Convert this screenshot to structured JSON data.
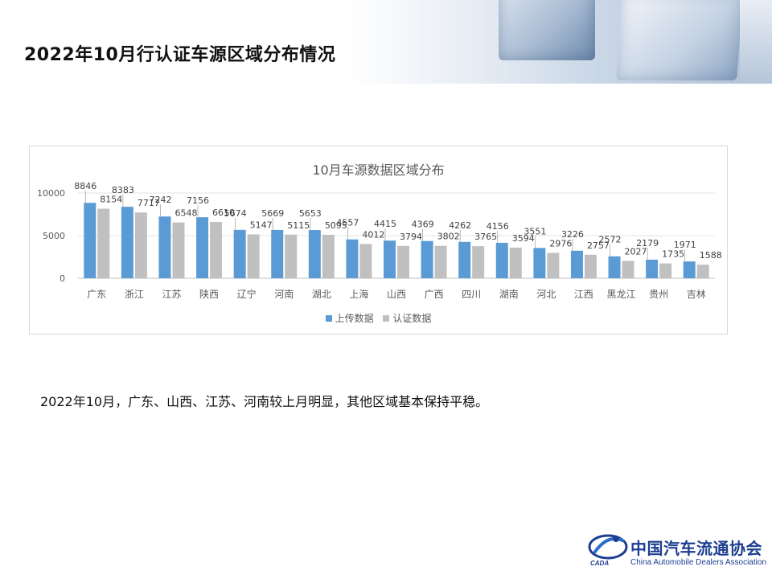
{
  "header": {
    "title": "2022年10月行认证车源区域分布情况"
  },
  "chart_data": {
    "type": "bar",
    "title": "10月车源数据区域分布",
    "categories": [
      "广东",
      "浙江",
      "江苏",
      "陕西",
      "辽宁",
      "河南",
      "湖北",
      "上海",
      "山西",
      "广西",
      "四川",
      "湖南",
      "河北",
      "江西",
      "黑龙江",
      "贵州",
      "吉林"
    ],
    "series": [
      {
        "name": "上传数据",
        "color": "#5b9bd5",
        "values": [
          8846,
          8383,
          7242,
          7156,
          5674,
          5669,
          5653,
          4557,
          4415,
          4369,
          4262,
          4156,
          3551,
          3226,
          2572,
          2179,
          1971
        ]
      },
      {
        "name": "认证数据",
        "color": "#c0c0c0",
        "values": [
          8154,
          7717,
          6548,
          6610,
          5147,
          5115,
          5095,
          4012,
          3794,
          3802,
          3765,
          3594,
          2976,
          2757,
          2027,
          1735,
          1588
        ]
      }
    ],
    "y_ticks": [
      "0",
      "5000",
      "10000"
    ],
    "ylim": [
      0,
      10000
    ],
    "grid": true,
    "legend_position": "bottom",
    "data_labels": true
  },
  "summary_text": "2022年10月，广东、山西、江苏、河南较上月明显，其他区域基本保持平稳。",
  "logo": {
    "name_cn": "中国汽车流通协会",
    "name_en": "China Automobile Dealers Association",
    "abbr": "CADA"
  }
}
